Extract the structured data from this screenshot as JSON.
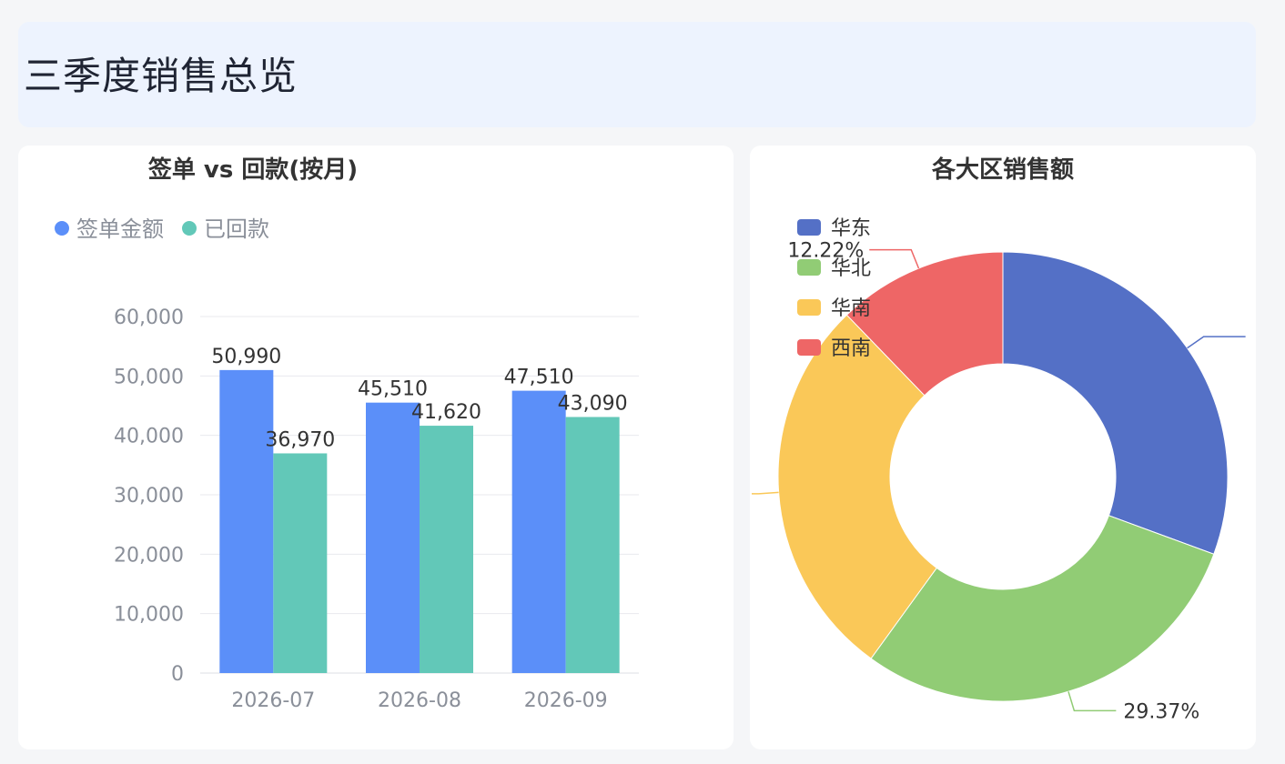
{
  "header": {
    "title": "三季度销售总览"
  },
  "charts": [
    {
      "id": "bar",
      "title": "签单 vs 回款(按月)"
    },
    {
      "id": "donut",
      "title": "各大区销售额"
    }
  ],
  "chart_data": [
    {
      "type": "bar",
      "title": "签单 vs 回款(按月)",
      "categories": [
        "2026-07",
        "2026-08",
        "2026-09"
      ],
      "series": [
        {
          "name": "签单金额",
          "values": [
            50990,
            45510,
            47510
          ],
          "labels": [
            "50,990",
            "45,510",
            "47,510"
          ],
          "color": "#5b8ff9"
        },
        {
          "name": "已回款",
          "values": [
            36970,
            41620,
            43090
          ],
          "labels": [
            "36,970",
            "41,620",
            "43,090"
          ],
          "color": "#62c8b8"
        }
      ],
      "ylim": [
        0,
        60000
      ],
      "yticks": [
        0,
        10000,
        20000,
        30000,
        40000,
        50000,
        60000
      ],
      "ytick_labels": [
        "0",
        "10,000",
        "20,000",
        "30,000",
        "40,000",
        "50,000",
        "60,000"
      ],
      "legend": "top-left",
      "grid": true
    },
    {
      "type": "pie",
      "title": "各大区销售额",
      "donut": true,
      "legend": "top-left",
      "slices": [
        {
          "name": "华东",
          "share": 0.3061,
          "color": "#5470c6",
          "label": ""
        },
        {
          "name": "华北",
          "share": 0.2937,
          "color": "#91cc75",
          "label": "29.37%"
        },
        {
          "name": "华南",
          "share": 0.278,
          "color": "#fac858",
          "label": ""
        },
        {
          "name": "西南",
          "share": 0.1222,
          "color": "#ee6666",
          "label": "12.22%"
        }
      ]
    }
  ]
}
